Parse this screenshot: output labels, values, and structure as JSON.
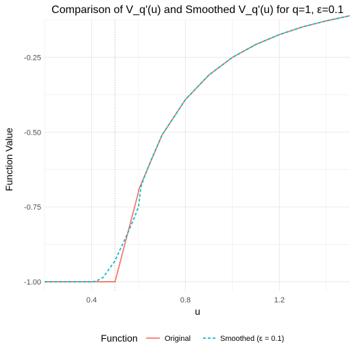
{
  "chart_data": {
    "type": "line",
    "title": "Comparison of V_q'(u) and Smoothed V_q'(u) for q=1, ε=0.1",
    "xlabel": "u",
    "ylabel": "Function Value",
    "xlim": [
      0.2,
      1.5
    ],
    "ylim": [
      -1.03,
      -0.125
    ],
    "x_ticks": [
      0.4,
      0.8,
      1.2
    ],
    "x_tick_labels": [
      "0.4",
      "0.8",
      "1.2"
    ],
    "y_ticks": [
      -1.0,
      -0.75,
      -0.5,
      -0.25
    ],
    "y_tick_labels": [
      "-1.00",
      "-0.75",
      "-0.50",
      "-0.25"
    ],
    "grid": true,
    "vline": {
      "x": 0.5,
      "style": "dotted"
    },
    "legend": {
      "title": "Function",
      "position": "bottom"
    },
    "colors": {
      "original": "#f8766d",
      "smoothed": "#00bfc4",
      "grid": "#ebebeb",
      "vline": "#bdbdbd"
    },
    "series": [
      {
        "name": "Original",
        "style": "solid",
        "x": [
          0.2,
          0.5,
          0.5,
          0.6,
          0.6,
          0.7,
          0.8,
          0.9,
          1.0,
          1.1,
          1.2,
          1.3,
          1.4,
          1.5
        ],
        "y": [
          -1.0,
          -1.0,
          -1.0,
          -0.7,
          -0.694,
          -0.51,
          -0.391,
          -0.309,
          -0.25,
          -0.207,
          -0.174,
          -0.148,
          -0.128,
          -0.111
        ]
      },
      {
        "name": "Smoothed (ε = 0.1)",
        "style": "dashed",
        "x": [
          0.2,
          0.4,
          0.42,
          0.45,
          0.5,
          0.52,
          0.55,
          0.58,
          0.6,
          0.61,
          0.62,
          0.65,
          0.7,
          0.8,
          0.9,
          1.0,
          1.1,
          1.2,
          1.3,
          1.4,
          1.5
        ],
        "y": [
          -1.0,
          -1.0,
          -0.998,
          -0.985,
          -0.93,
          -0.895,
          -0.845,
          -0.79,
          -0.75,
          -0.685,
          -0.66,
          -0.6,
          -0.51,
          -0.391,
          -0.309,
          -0.25,
          -0.207,
          -0.174,
          -0.148,
          -0.128,
          -0.111
        ]
      }
    ]
  }
}
